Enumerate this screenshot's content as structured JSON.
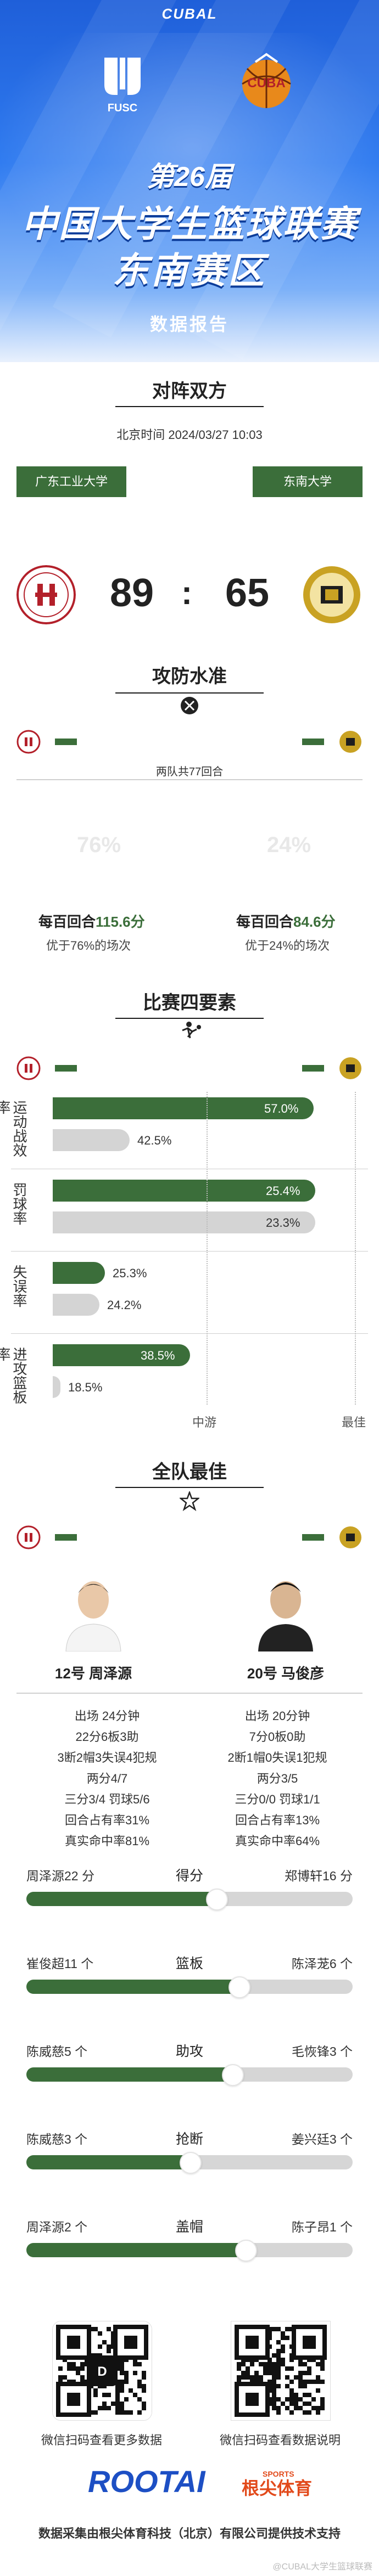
{
  "header": {
    "cubal": "CUBAL",
    "fusc_label": "FUSC",
    "cuba_label": "CUBA",
    "edition": "第26届",
    "title_line1": "中国大学生篮球联赛",
    "title_line2": "东南赛区",
    "subtitle": "数据报告"
  },
  "matchup": {
    "title": "对阵双方",
    "time": "北京时间  2024/03/27 10:03",
    "home_team": "广东工业大学",
    "away_team": "东南大学",
    "home_score": "89",
    "separator": ":",
    "away_score": "65"
  },
  "efficiency": {
    "title": "攻防水准",
    "possessions": "两队共77回合",
    "home_pct": "76%",
    "away_pct": "24%",
    "home_label_prefix": "每百回合",
    "home_value": "115.6分",
    "home_sub": "优于76%的场次",
    "away_label_prefix": "每百回合",
    "away_value": "84.6分",
    "away_sub": "优于24%的场次"
  },
  "four_factors": {
    "title": "比赛四要素",
    "groups": [
      {
        "label": "运动战效率",
        "home": "57.0%",
        "away": "42.5%",
        "home_frac": 0.95,
        "away_frac": 0.28
      },
      {
        "label": "罚球率",
        "home": "25.4%",
        "away": "23.3%",
        "home_frac": 0.955,
        "away_frac": 0.955
      },
      {
        "label": "失误率",
        "home": "25.3%",
        "away": "24.2%",
        "home_frac": 0.19,
        "away_frac": 0.17
      },
      {
        "label": "进攻篮板率",
        "home": "38.5%",
        "away": "18.5%",
        "home_frac": 0.5,
        "away_frac": 0.015
      }
    ],
    "ticks": [
      "中游",
      "最佳"
    ]
  },
  "best": {
    "title": "全队最佳",
    "home_player": {
      "name": "12号 周泽源",
      "lines": [
        "出场 24分钟",
        "22分6板3助",
        "3断2帽3失误4犯规",
        "两分4/7",
        "三分3/4 罚球5/6",
        "回合占有率31%",
        "真实命中率81%"
      ]
    },
    "away_player": {
      "name": "20号 马俊彦",
      "lines": [
        "出场 20分钟",
        "7分0板0助",
        "2断1帽0失误1犯规",
        "两分3/5",
        "三分0/0 罚球1/1",
        "回合占有率13%",
        "真实命中率64%"
      ]
    },
    "compare": [
      {
        "category": "得分",
        "left": "周泽源22 分",
        "right": "郑博轩16 分",
        "ratio": 0.58
      },
      {
        "category": "篮板",
        "left": "崔俊超11 个",
        "right": "陈泽茏6 个",
        "ratio": 0.65
      },
      {
        "category": "助攻",
        "left": "陈威慈5 个",
        "right": "毛恢锋3 个",
        "ratio": 0.63
      },
      {
        "category": "抢断",
        "left": "陈威慈3 个",
        "right": "姜兴廷3 个",
        "ratio": 0.5
      },
      {
        "category": "盖帽",
        "left": "周泽源2 个",
        "right": "陈子昂1 个",
        "ratio": 0.67
      }
    ]
  },
  "footer": {
    "qr_left_caption": "微信扫码查看更多数据",
    "qr_right_caption": "微信扫码查看数据说明",
    "brand": "ROOTAI",
    "brand_sports": "SPORTS",
    "brand_cn": "根尖体育",
    "credits": "数据采集由根尖体育科技（北京）有限公司提供技术支持",
    "watermark": "@CUBAL大学生篮球联赛"
  },
  "colors": {
    "accent_green": "#3b6e3a",
    "home_red": "#b3202a",
    "away_gold": "#c9a223",
    "header_blue": "#2f7bf0"
  }
}
